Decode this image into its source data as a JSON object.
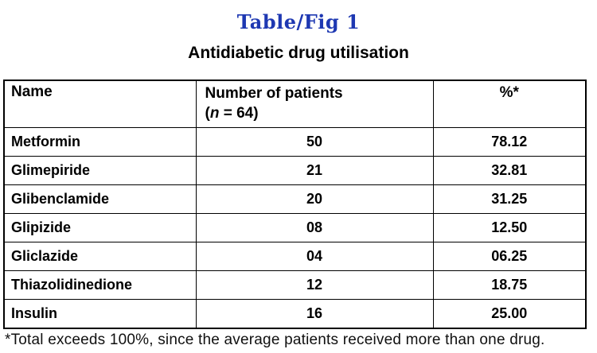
{
  "page": {
    "title": "Table/Fig 1",
    "subtitle": "Antidiabetic drug utilisation"
  },
  "table": {
    "columns": {
      "name": "Name",
      "patients_line1": "Number of patients",
      "patients_paren_open": "(",
      "patients_n": "n",
      "patients_rest": " = 64)",
      "percent": "%*"
    },
    "rows": [
      {
        "name": "Metformin",
        "patients": "50",
        "percent": "78.12"
      },
      {
        "name": "Glimepiride",
        "patients": "21",
        "percent": "32.81"
      },
      {
        "name": "Glibenclamide",
        "patients": "20",
        "percent": "31.25"
      },
      {
        "name": "Glipizide",
        "patients": "08",
        "percent": "12.50"
      },
      {
        "name": "Gliclazide",
        "patients": "04",
        "percent": "06.25"
      },
      {
        "name": "Thiazolidinedione",
        "patients": "12",
        "percent": "18.75"
      },
      {
        "name": "Insulin",
        "patients": "16",
        "percent": "25.00"
      }
    ]
  },
  "footnote": "*Total exceeds 100%, since the average patients received more than one drug.",
  "colors": {
    "title_blue": "#1e38b2",
    "text": "#000000",
    "border": "#000000",
    "background": "#ffffff"
  },
  "chart_data": {
    "type": "table",
    "title": "Table/Fig 1",
    "subtitle": "Antidiabetic drug utilisation",
    "columns": [
      "Name",
      "Number of patients (n = 64)",
      "%*"
    ],
    "rows": [
      [
        "Metformin",
        50,
        78.12
      ],
      [
        "Glimepiride",
        21,
        32.81
      ],
      [
        "Glibenclamide",
        20,
        31.25
      ],
      [
        "Glipizide",
        8,
        12.5
      ],
      [
        "Gliclazide",
        4,
        6.25
      ],
      [
        "Thiazolidinedione",
        12,
        18.75
      ],
      [
        "Insulin",
        16,
        25.0
      ]
    ],
    "footnote": "*Total exceeds 100%, since the average patients received more than one drug."
  }
}
